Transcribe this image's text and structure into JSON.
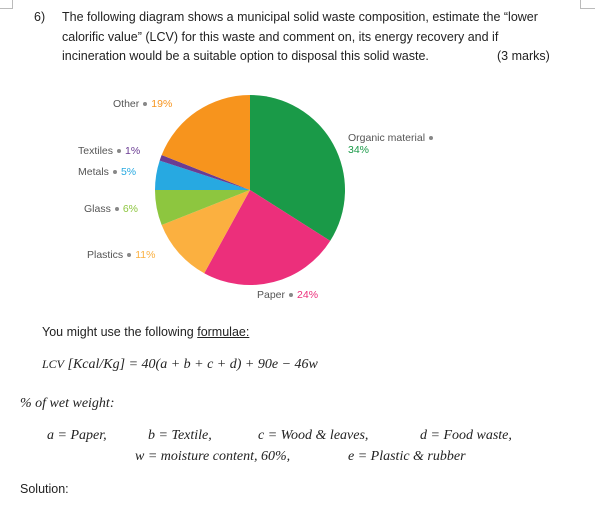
{
  "question": {
    "number": "6)",
    "text": "The following diagram shows a municipal solid waste composition, estimate the “lower calorific value” (LCV) for this waste and comment on, its energy recovery and if incineration would be a suitable option to disposal this solid waste.",
    "marks": "(3 marks)"
  },
  "chart_data": {
    "type": "pie",
    "categories": [
      "Organic material",
      "Paper",
      "Plastics",
      "Glass",
      "Metals",
      "Textiles",
      "Other"
    ],
    "values": [
      34,
      24,
      11,
      6,
      5,
      1,
      19
    ],
    "value_labels": [
      "34%",
      "24%",
      "11%",
      "6%",
      "5%",
      "1%",
      "19%"
    ],
    "colors": [
      "#1a9a48",
      "#ec2f7b",
      "#fbb040",
      "#8dc63f",
      "#27a9e1",
      "#6a3c93",
      "#f7941d"
    ]
  },
  "formulae": {
    "intro": "You might use the following",
    "intro_link": "formulae:",
    "lhs": "LCV",
    "unit": "[Kcal/Kg]",
    "rhs": "= 40(a + b + c + d) + 90e − 46w"
  },
  "definitions": {
    "heading": "% of wet weight:",
    "items": [
      "a = Paper,",
      "b = Textile,",
      "c = Wood & leaves,",
      "d = Food waste,",
      "w = moisture content, 60%,",
      "e = Plastic & rubber"
    ]
  },
  "solution": "Solution:"
}
